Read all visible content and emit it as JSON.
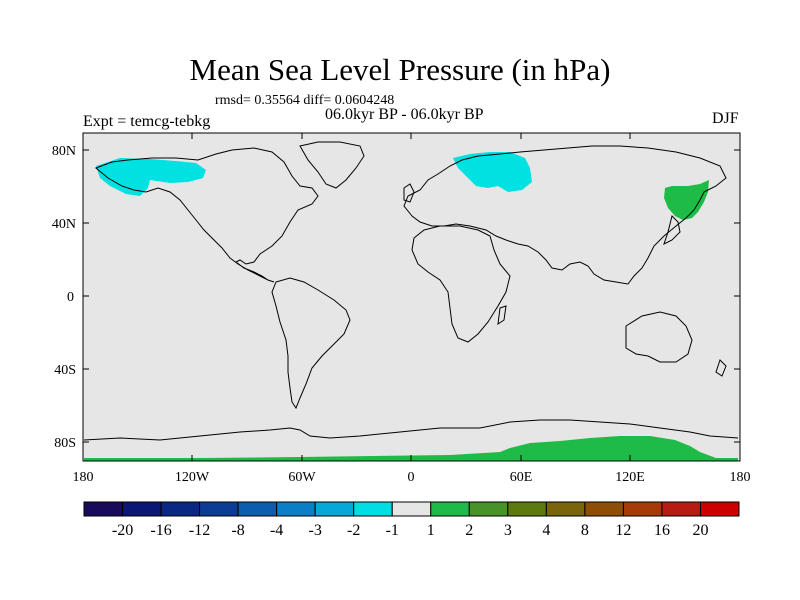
{
  "title": "Mean Sea Level Pressure (in hPa)",
  "stats_text": "rmsd= 0.35564 diff= 0.0604248",
  "period_text": "06.0kyr BP - 06.0kyr BP",
  "experiment_text": "Expt = temcg-tebkg",
  "season": "DJF",
  "map": {
    "projection": "cylindrical-equidistant",
    "background_color": "#e6e6e6",
    "lat_labels": [
      "80N",
      "40N",
      "0",
      "40S",
      "80S"
    ],
    "lon_labels": [
      "180",
      "120W",
      "60W",
      "0",
      "60E",
      "120E",
      "180"
    ],
    "anomaly_regions": [
      {
        "name": "alaska-northwest-canada",
        "level": "-2",
        "color": "#00e1e1"
      },
      {
        "name": "scandinavia-barents",
        "level": "-2",
        "color": "#00e1e1"
      },
      {
        "name": "kamchatka-okhotsk",
        "level": "2",
        "color": "#1ebc46"
      },
      {
        "name": "east-antarctica",
        "level": "2",
        "color": "#1ebc46"
      }
    ]
  },
  "colorbar": {
    "levels": [
      "-20",
      "-16",
      "-12",
      "-8",
      "-4",
      "-3",
      "-2",
      "-1",
      "1",
      "2",
      "3",
      "4",
      "8",
      "12",
      "16",
      "20"
    ],
    "colors": [
      "#1a0a5c",
      "#0c1677",
      "#0a2785",
      "#0b3d97",
      "#0e5cb0",
      "#0a7fc8",
      "#04a9d9",
      "#00dde3",
      "#e6e6e6",
      "#1ebc46",
      "#48922a",
      "#5c7a10",
      "#7a6508",
      "#8e4e05",
      "#a83a08",
      "#b81c10",
      "#cc0000"
    ]
  }
}
